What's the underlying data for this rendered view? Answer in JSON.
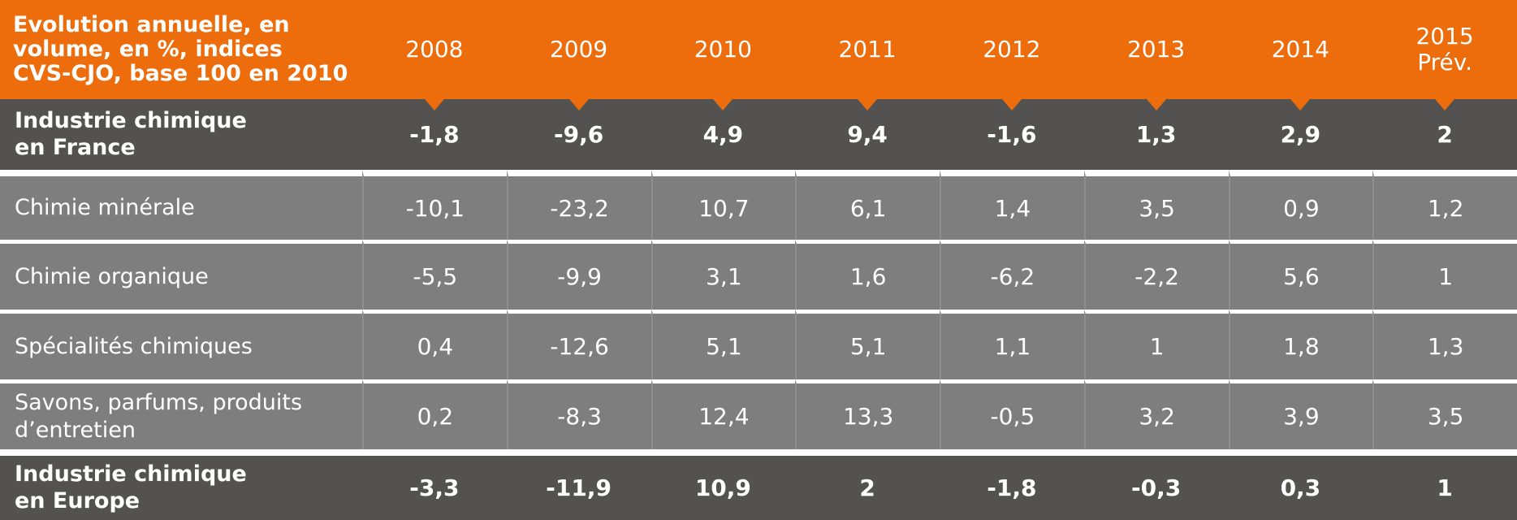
{
  "chart_data": {
    "type": "table",
    "header": {
      "label": "Evolution annuelle, en\nvolume, en %, indices\nCVS-CJO, base 100 en 2010",
      "years": [
        "2008",
        "2009",
        "2010",
        "2011",
        "2012",
        "2013",
        "2014",
        "2015\nPrév."
      ]
    },
    "rows": [
      {
        "label": "Industrie chimique\nen France",
        "style": "dark",
        "values": [
          "-1,8",
          "-9,6",
          "4,9",
          "9,4",
          "-1,6",
          "1,3",
          "2,9",
          "2"
        ]
      },
      {
        "label": "Chimie minérale",
        "style": "grey",
        "values": [
          "-10,1",
          "-23,2",
          "10,7",
          "6,1",
          "1,4",
          "3,5",
          "0,9",
          "1,2"
        ]
      },
      {
        "label": "Chimie organique",
        "style": "grey",
        "values": [
          "-5,5",
          "-9,9",
          "3,1",
          "1,6",
          "-6,2",
          "-2,2",
          "5,6",
          "1"
        ]
      },
      {
        "label": "Spécialités chimiques",
        "style": "grey",
        "values": [
          "0,4",
          "-12,6",
          "5,1",
          "5,1",
          "1,1",
          "1",
          "1,8",
          "1,3"
        ]
      },
      {
        "label": "Savons, parfums, produits\nd’entretien",
        "style": "grey",
        "values": [
          "0,2",
          "-8,3",
          "12,4",
          "13,3",
          "-0,5",
          "3,2",
          "3,9",
          "3,5"
        ]
      },
      {
        "label": "Industrie chimique\nen Europe",
        "style": "dark",
        "values": [
          "-3,3",
          "-11,9",
          "10,9",
          "2",
          "-1,8",
          "-0,3",
          "0,3",
          "1"
        ]
      }
    ]
  },
  "colors": {
    "header": "#ed6c0b",
    "dark_row": "#535250",
    "grey_row": "#7f7e7e",
    "text": "#ffffff"
  }
}
